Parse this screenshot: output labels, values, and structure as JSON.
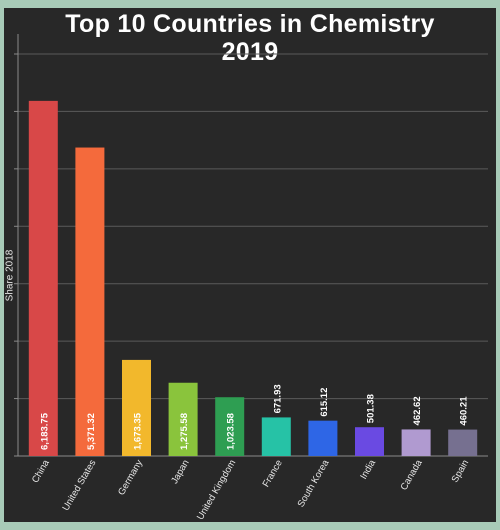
{
  "chart_data": {
    "type": "bar",
    "title": "Top 10 Countries in Chemistry",
    "subtitle": "2019",
    "ylabel": "Share 2018",
    "xlabel": "",
    "ylim": [
      0,
      7000
    ],
    "grid": true,
    "categories": [
      "China",
      "United States",
      "Germany",
      "Japan",
      "United Kingdom",
      "France",
      "South Korea",
      "India",
      "Canada",
      "Spain"
    ],
    "values": [
      6183.75,
      5371.32,
      1673.35,
      1275.58,
      1023.58,
      671.93,
      615.12,
      501.38,
      462.62,
      460.21
    ],
    "value_labels": [
      "6,183.75",
      "5,371.32",
      "1,673.35",
      "1,275.58",
      "1,023.58",
      "671.93",
      "615.12",
      "501.38",
      "462.62",
      "460.21"
    ],
    "colors": [
      "#d84848",
      "#f46a3c",
      "#f2b82c",
      "#8ac43c",
      "#2e9e52",
      "#26c2a6",
      "#2e66e6",
      "#6a4ae2",
      "#b09ad0",
      "#767090"
    ]
  }
}
